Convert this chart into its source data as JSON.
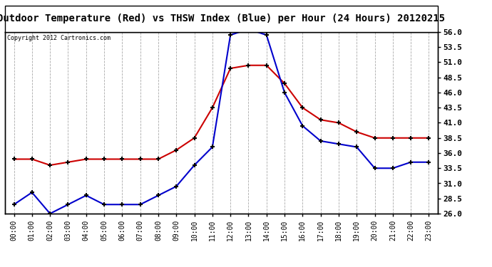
{
  "title": "Outdoor Temperature (Red) vs THSW Index (Blue) per Hour (24 Hours) 20120215",
  "copyright_text": "Copyright 2012 Cartronics.com",
  "hours": [
    0,
    1,
    2,
    3,
    4,
    5,
    6,
    7,
    8,
    9,
    10,
    11,
    12,
    13,
    14,
    15,
    16,
    17,
    18,
    19,
    20,
    21,
    22,
    23
  ],
  "hour_labels": [
    "00:00",
    "01:00",
    "02:00",
    "03:00",
    "04:00",
    "05:00",
    "06:00",
    "07:00",
    "08:00",
    "09:00",
    "10:00",
    "11:00",
    "12:00",
    "13:00",
    "14:00",
    "15:00",
    "16:00",
    "17:00",
    "18:00",
    "19:00",
    "20:00",
    "21:00",
    "22:00",
    "23:00"
  ],
  "red_temp": [
    35.0,
    35.0,
    34.0,
    34.5,
    35.0,
    35.0,
    35.0,
    35.0,
    35.0,
    36.5,
    38.5,
    43.5,
    50.0,
    50.5,
    50.5,
    47.5,
    43.5,
    41.5,
    41.0,
    39.5,
    38.5,
    38.5,
    38.5,
    38.5
  ],
  "blue_thsw": [
    27.5,
    29.5,
    26.0,
    27.5,
    29.0,
    27.5,
    27.5,
    27.5,
    29.0,
    30.5,
    34.0,
    37.0,
    55.5,
    56.5,
    55.5,
    46.0,
    40.5,
    38.0,
    37.5,
    37.0,
    33.5,
    33.5,
    34.5,
    34.5
  ],
  "ylim": [
    26.0,
    56.0
  ],
  "yticks": [
    26.0,
    28.5,
    31.0,
    33.5,
    36.0,
    38.5,
    41.0,
    43.5,
    46.0,
    48.5,
    51.0,
    53.5,
    56.0
  ],
  "red_color": "#cc0000",
  "blue_color": "#0000cc",
  "plot_bg": "#ffffff",
  "fig_bg": "#ffffff",
  "grid_color": "#aaaaaa",
  "marker": "+",
  "title_fontsize": 10,
  "copyright_fontsize": 6,
  "tick_fontsize": 7,
  "ytick_fontsize": 8
}
